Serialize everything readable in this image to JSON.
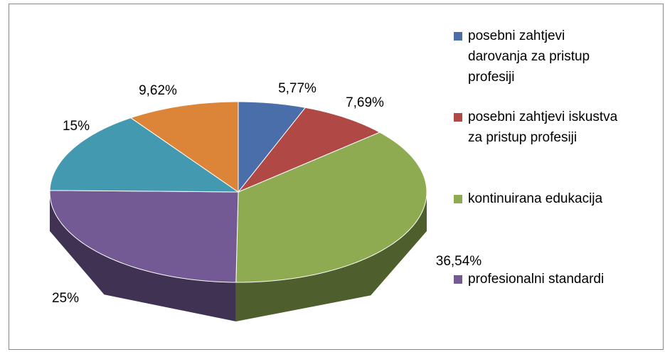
{
  "chart_data": {
    "type": "pie",
    "categories": [
      "posebni zahtjevi darovanja za pristup profesiji",
      "posebni zahtjevi iskustva za pristup profesiji",
      "kontinuirana edukacija",
      "profesionalni standardi",
      null,
      null
    ],
    "values": [
      5.77,
      7.69,
      36.54,
      25,
      15,
      9.62
    ],
    "value_labels": [
      "5,77%",
      "7,69%",
      "36,54%",
      "25%",
      "15%",
      "9,62%"
    ],
    "colors": [
      "#4a6ea9",
      "#b04845",
      "#8eab52",
      "#735a95",
      "#4399b0",
      "#dc8539"
    ],
    "legend": "right"
  }
}
